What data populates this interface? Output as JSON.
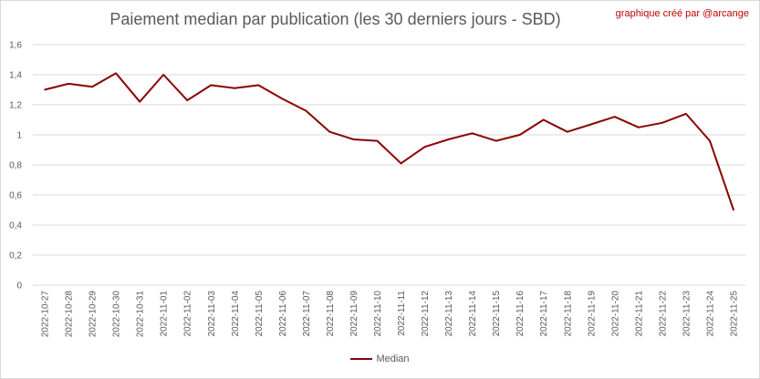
{
  "title": "Paiement median par publication (les 30 derniers jours - SBD)",
  "credit": "graphique créé par @arcange",
  "colors": {
    "line": "#8b0000",
    "grid": "#d9d9d9",
    "text": "#595959",
    "credit": "#c00000"
  },
  "chart_data": {
    "type": "line",
    "title": "Paiement median par publication (les 30 derniers jours - SBD)",
    "xlabel": "",
    "ylabel": "",
    "ylim": [
      0,
      1.6
    ],
    "yticks": [
      "0",
      "0,2",
      "0,4",
      "0,6",
      "0,8",
      "1",
      "1,2",
      "1,4",
      "1,6"
    ],
    "grid": true,
    "legend_position": "bottom",
    "categories": [
      "2022-10-27",
      "2022-10-28",
      "2022-10-29",
      "2022-10-30",
      "2022-10-31",
      "2022-11-01",
      "2022-11-02",
      "2022-11-03",
      "2022-11-04",
      "2022-11-05",
      "2022-11-06",
      "2022-11-07",
      "2022-11-08",
      "2022-11-09",
      "2022-11-10",
      "2022-11-11",
      "2022-11-12",
      "2022-11-13",
      "2022-11-14",
      "2022-11-15",
      "2022-11-16",
      "2022-11-17",
      "2022-11-18",
      "2022-11-19",
      "2022-11-20",
      "2022-11-21",
      "2022-11-22",
      "2022-11-23",
      "2022-11-24",
      "2022-11-25"
    ],
    "series": [
      {
        "name": "Median",
        "values": [
          1.3,
          1.34,
          1.32,
          1.41,
          1.22,
          1.4,
          1.23,
          1.33,
          1.31,
          1.33,
          1.24,
          1.16,
          1.02,
          0.97,
          0.96,
          0.81,
          0.92,
          0.97,
          1.01,
          0.96,
          1.0,
          1.1,
          1.02,
          1.07,
          1.12,
          1.05,
          1.08,
          1.14,
          0.96,
          0.5
        ]
      }
    ]
  }
}
